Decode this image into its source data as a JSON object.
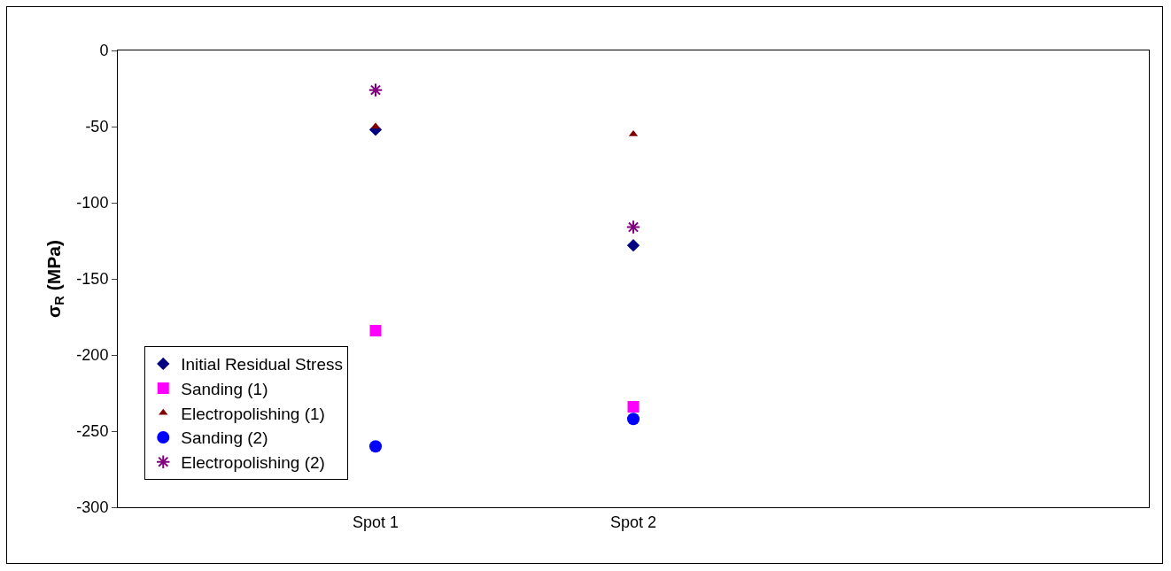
{
  "chart_data": {
    "type": "scatter",
    "ylabel": "σ$_{R}$ (MPa)",
    "categories": [
      "Spot 1",
      "Spot 2"
    ],
    "series": [
      {
        "name": "Initial Residual Stress",
        "color": "#000080",
        "marker": "diamond",
        "values": [
          -52,
          -128
        ]
      },
      {
        "name": "Sanding (1)",
        "color": "#ff00ff",
        "marker": "square",
        "values": [
          -184,
          -234
        ]
      },
      {
        "name": "Electropolishing (1)",
        "color": "#800000",
        "marker": "triangle",
        "values": [
          -50,
          -55
        ]
      },
      {
        "name": "Sanding (2)",
        "color": "#0000ff",
        "marker": "circle",
        "values": [
          -260,
          -242
        ]
      },
      {
        "name": "Electropolishing (2)",
        "color": "#800080",
        "marker": "cross",
        "values": [
          -26,
          -116
        ]
      }
    ],
    "ylim": [
      -300,
      0
    ],
    "yticks": [
      -300,
      -250,
      -200,
      -150,
      -100,
      -50,
      0
    ],
    "grid": false,
    "legend": "bottom left"
  }
}
